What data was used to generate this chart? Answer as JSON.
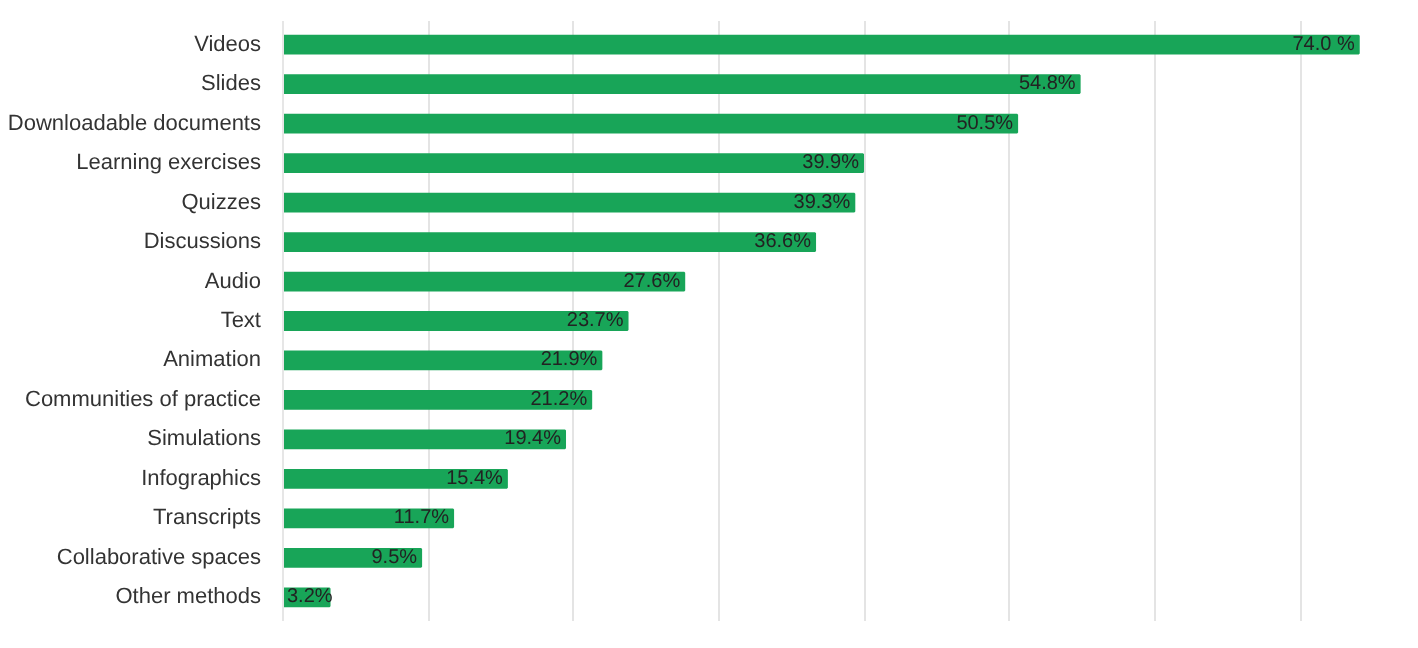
{
  "chart_data": {
    "type": "bar",
    "orientation": "horizontal",
    "categories": [
      "Videos",
      "Slides",
      "Downloadable documents",
      "Learning exercises",
      "Quizzes",
      "Discussions",
      "Audio",
      "Text",
      "Animation",
      "Communities of practice",
      "Simulations",
      "Infographics",
      "Transcripts",
      "Collaborative spaces",
      "Other methods"
    ],
    "values": [
      74.0,
      54.8,
      50.5,
      39.9,
      39.3,
      36.6,
      27.6,
      23.7,
      21.9,
      21.2,
      19.4,
      15.4,
      11.7,
      9.5,
      3.2
    ],
    "value_labels": [
      "74.0 %",
      "54.8%",
      "50.5%",
      "39.9%",
      "39.3%",
      "36.6%",
      "27.6%",
      "23.7%",
      "21.9%",
      "21.2%",
      "19.4%",
      "15.4%",
      "11.7%",
      "9.5%",
      "3.2%"
    ],
    "color": "#18a558",
    "xticks": [
      {
        "value": 0,
        "label": null
      },
      {
        "value": 10,
        "label": null
      },
      {
        "value": 20,
        "label": null
      },
      {
        "value": 30,
        "label": null
      },
      {
        "value": 40,
        "label": null
      },
      {
        "value": 50,
        "label": null
      },
      {
        "value": 60,
        "label": null
      },
      {
        "value": 70,
        "label": null
      }
    ],
    "grid": "x",
    "tick_labels": "y"
  }
}
